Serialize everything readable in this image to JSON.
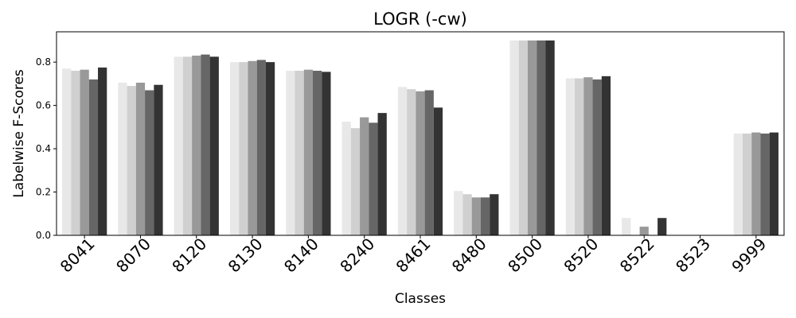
{
  "chart_data": {
    "type": "bar",
    "title": "LOGR (-cw)",
    "xlabel": "Classes",
    "ylabel": "Labelwise F-Scores",
    "ylim": [
      0,
      0.94
    ],
    "yticks": [
      "0.0",
      "0.2",
      "0.4",
      "0.6",
      "0.8"
    ],
    "grid": false,
    "legend": "none",
    "categories": [
      "8041",
      "8070",
      "8120",
      "8130",
      "8140",
      "8240",
      "8461",
      "8480",
      "8500",
      "8520",
      "8522",
      "8523",
      "9999"
    ],
    "series": [
      {
        "color": "#e8e8e8",
        "values": [
          0.77,
          0.705,
          0.825,
          0.8,
          0.76,
          0.525,
          0.685,
          0.205,
          0.9,
          0.725,
          0.08,
          0.0,
          0.47
        ]
      },
      {
        "color": "#d0d0d0",
        "values": [
          0.76,
          0.69,
          0.825,
          0.8,
          0.76,
          0.495,
          0.675,
          0.19,
          0.9,
          0.725,
          0.0,
          0.0,
          0.47
        ]
      },
      {
        "color": "#999999",
        "values": [
          0.765,
          0.705,
          0.83,
          0.805,
          0.765,
          0.545,
          0.665,
          0.175,
          0.9,
          0.73,
          0.04,
          0.0,
          0.475
        ]
      },
      {
        "color": "#666666",
        "values": [
          0.72,
          0.67,
          0.835,
          0.81,
          0.76,
          0.52,
          0.67,
          0.175,
          0.9,
          0.72,
          0.0,
          0.0,
          0.47
        ]
      },
      {
        "color": "#333333",
        "values": [
          0.775,
          0.695,
          0.825,
          0.8,
          0.755,
          0.565,
          0.59,
          0.19,
          0.9,
          0.735,
          0.08,
          0.0,
          0.475
        ]
      }
    ]
  }
}
